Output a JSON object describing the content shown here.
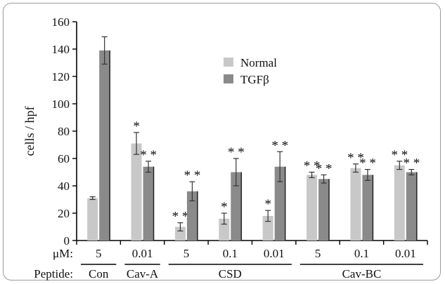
{
  "chart_data": {
    "type": "bar",
    "ylabel": "cells / hpf",
    "ylim": [
      0,
      160
    ],
    "yticks": [
      0,
      20,
      40,
      60,
      80,
      100,
      120,
      140,
      160
    ],
    "grid": false,
    "legend_position": "top-center",
    "series": [
      {
        "name": "Normal",
        "color": "#c8c8c8"
      },
      {
        "name": "TGFβ",
        "color": "#8a8a8a"
      }
    ],
    "groups": [
      {
        "dose": "5",
        "bars": [
          {
            "value": 31,
            "err": 1,
            "sig": ""
          },
          {
            "value": 139,
            "err": 10,
            "sig": ""
          }
        ]
      },
      {
        "dose": "0.01",
        "bars": [
          {
            "value": 71,
            "err": 8,
            "sig": "*"
          },
          {
            "value": 54,
            "err": 4,
            "sig": "* *"
          }
        ]
      },
      {
        "dose": "5",
        "bars": [
          {
            "value": 10,
            "err": 3,
            "sig": "* *"
          },
          {
            "value": 36,
            "err": 7,
            "sig": "* *"
          }
        ]
      },
      {
        "dose": "0.1",
        "bars": [
          {
            "value": 16,
            "err": 4,
            "sig": "*"
          },
          {
            "value": 50,
            "err": 10,
            "sig": "* *"
          }
        ]
      },
      {
        "dose": "0.01",
        "bars": [
          {
            "value": 18,
            "err": 4,
            "sig": "*"
          },
          {
            "value": 54,
            "err": 11,
            "sig": "* *"
          }
        ]
      },
      {
        "dose": "5",
        "bars": [
          {
            "value": 48,
            "err": 2,
            "sig": "* *"
          },
          {
            "value": 45,
            "err": 3,
            "sig": "* *"
          }
        ]
      },
      {
        "dose": "0.1",
        "bars": [
          {
            "value": 53,
            "err": 3,
            "sig": "* *"
          },
          {
            "value": 48,
            "err": 4,
            "sig": "* *"
          }
        ]
      },
      {
        "dose": "0.01",
        "bars": [
          {
            "value": 55,
            "err": 3,
            "sig": "* *"
          },
          {
            "value": 50,
            "err": 2,
            "sig": "* *"
          }
        ]
      }
    ],
    "row_labels": {
      "dose": "μM:",
      "peptide": "Peptide:"
    },
    "peptides": [
      {
        "name": "Con",
        "first_group": 0,
        "last_group": 0
      },
      {
        "name": "Cav-A",
        "first_group": 1,
        "last_group": 1
      },
      {
        "name": "CSD",
        "first_group": 2,
        "last_group": 4
      },
      {
        "name": "Cav-BC",
        "first_group": 5,
        "last_group": 7
      }
    ]
  }
}
